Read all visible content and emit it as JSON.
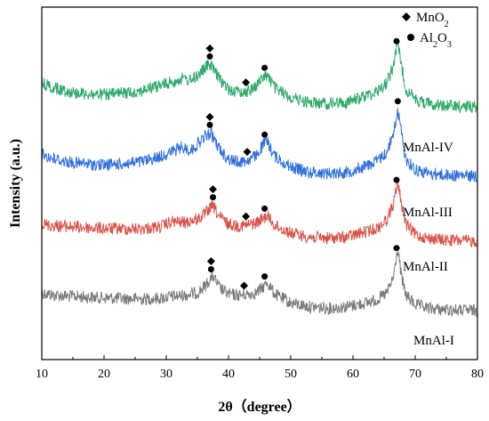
{
  "chart_data": {
    "type": "line",
    "xlabel": "2θ（degree）",
    "ylabel": "Intensity (a.u.)",
    "xlim": [
      10,
      80
    ],
    "xticks": [
      10,
      20,
      30,
      40,
      50,
      60,
      70,
      80
    ],
    "grid": false,
    "legend": {
      "placement": "top-right",
      "entries": [
        {
          "symbol": "diamond",
          "label": "MnO",
          "sub": "2"
        },
        {
          "symbol": "circle",
          "label": "Al",
          "sub": "2",
          "label2": "O",
          "sub2": "3"
        }
      ]
    },
    "series": [
      {
        "name": "MnAl-I",
        "color": "#7a7a7a",
        "x": [
          10,
          12,
          15,
          18,
          20,
          23,
          26,
          29,
          31,
          33,
          35,
          36,
          37,
          37.5,
          38.5,
          40,
          41.5,
          43,
          44.5,
          45.5,
          46.2,
          47.5,
          50,
          53,
          56,
          59,
          62,
          64,
          65.5,
          66.5,
          67.2,
          67.8,
          68.5,
          70,
          72,
          75,
          80
        ],
        "y": [
          0.45,
          0.4,
          0.38,
          0.36,
          0.35,
          0.34,
          0.33,
          0.34,
          0.38,
          0.4,
          0.45,
          0.55,
          0.7,
          0.78,
          0.55,
          0.42,
          0.4,
          0.42,
          0.45,
          0.55,
          0.65,
          0.42,
          0.25,
          0.18,
          0.15,
          0.18,
          0.25,
          0.32,
          0.45,
          0.75,
          1.3,
          0.75,
          0.4,
          0.22,
          0.15,
          0.12,
          0.1
        ],
        "peaks": [
          {
            "x": 37.2,
            "markers": [
              "diamond",
              "circle"
            ]
          },
          {
            "x": 42.5,
            "markers": [
              "diamond"
            ]
          },
          {
            "x": 45.8,
            "markers": [
              "circle"
            ]
          },
          {
            "x": 67.0,
            "markers": [
              "circle"
            ]
          }
        ]
      },
      {
        "name": "MnAl-II",
        "color": "#d9524a",
        "x": [
          10,
          12,
          15,
          18,
          20,
          23,
          26,
          29,
          31,
          33,
          35,
          36,
          37,
          37.5,
          38.5,
          40,
          41.5,
          43,
          44.5,
          45.5,
          46.2,
          47.5,
          50,
          53,
          56,
          59,
          62,
          64,
          65.5,
          66.5,
          67.2,
          67.8,
          68.5,
          70,
          72,
          75,
          80
        ],
        "y": [
          0.45,
          0.42,
          0.4,
          0.38,
          0.37,
          0.36,
          0.36,
          0.4,
          0.5,
          0.48,
          0.55,
          0.62,
          0.75,
          0.8,
          0.6,
          0.45,
          0.42,
          0.43,
          0.48,
          0.55,
          0.62,
          0.42,
          0.28,
          0.2,
          0.18,
          0.2,
          0.3,
          0.38,
          0.55,
          0.85,
          1.25,
          0.85,
          0.45,
          0.25,
          0.18,
          0.14,
          0.12
        ],
        "peaks": [
          {
            "x": 37.5,
            "markers": [
              "diamond",
              "circle"
            ]
          },
          {
            "x": 42.8,
            "markers": [
              "diamond"
            ]
          },
          {
            "x": 45.8,
            "markers": [
              "circle"
            ]
          },
          {
            "x": 67.0,
            "markers": [
              "circle"
            ]
          }
        ]
      },
      {
        "name": "MnAl-III",
        "color": "#2f6fdc",
        "x": [
          10,
          12,
          15,
          18,
          20,
          23,
          26,
          29,
          31,
          32.5,
          34,
          35.5,
          36.5,
          37.2,
          38.5,
          40,
          41.5,
          43,
          44.5,
          45.5,
          46.2,
          47.5,
          50,
          53,
          56,
          59,
          62,
          64,
          65.5,
          66.5,
          67.2,
          67.8,
          68.5,
          70,
          72,
          75,
          80
        ],
        "y": [
          0.55,
          0.45,
          0.38,
          0.35,
          0.34,
          0.36,
          0.4,
          0.5,
          0.6,
          0.68,
          0.62,
          0.8,
          0.92,
          0.95,
          0.65,
          0.45,
          0.4,
          0.42,
          0.52,
          0.72,
          0.8,
          0.5,
          0.3,
          0.2,
          0.18,
          0.2,
          0.32,
          0.42,
          0.6,
          0.95,
          1.4,
          0.95,
          0.45,
          0.25,
          0.18,
          0.14,
          0.12
        ],
        "peaks": [
          {
            "x": 37.0,
            "markers": [
              "diamond",
              "circle"
            ]
          },
          {
            "x": 43.0,
            "markers": [
              "diamond"
            ]
          },
          {
            "x": 45.8,
            "markers": [
              "circle"
            ]
          },
          {
            "x": 67.2,
            "markers": [
              "circle"
            ]
          }
        ]
      },
      {
        "name": "MnAl-IV",
        "color": "#2fa86b",
        "x": [
          10,
          12,
          15,
          18,
          20,
          23,
          26,
          29,
          31,
          32.5,
          34,
          35.5,
          36.5,
          37.2,
          38.5,
          40,
          41.5,
          43,
          44.5,
          45.5,
          46.2,
          47.5,
          50,
          53,
          56,
          59,
          62,
          64,
          65.5,
          66.5,
          67.2,
          67.8,
          68.5,
          70,
          72,
          75,
          80
        ],
        "y": [
          0.6,
          0.5,
          0.42,
          0.38,
          0.37,
          0.4,
          0.45,
          0.55,
          0.62,
          0.68,
          0.65,
          0.8,
          0.92,
          0.95,
          0.68,
          0.48,
          0.42,
          0.44,
          0.55,
          0.7,
          0.75,
          0.5,
          0.32,
          0.22,
          0.2,
          0.22,
          0.35,
          0.45,
          0.62,
          0.95,
          1.35,
          0.95,
          0.48,
          0.28,
          0.2,
          0.16,
          0.14
        ],
        "peaks": [
          {
            "x": 37.0,
            "markers": [
              "diamond",
              "circle"
            ]
          },
          {
            "x": 42.8,
            "markers": [
              "diamond"
            ]
          },
          {
            "x": 45.8,
            "markers": [
              "circle"
            ]
          },
          {
            "x": 67.0,
            "markers": [
              "circle"
            ]
          }
        ]
      }
    ]
  }
}
